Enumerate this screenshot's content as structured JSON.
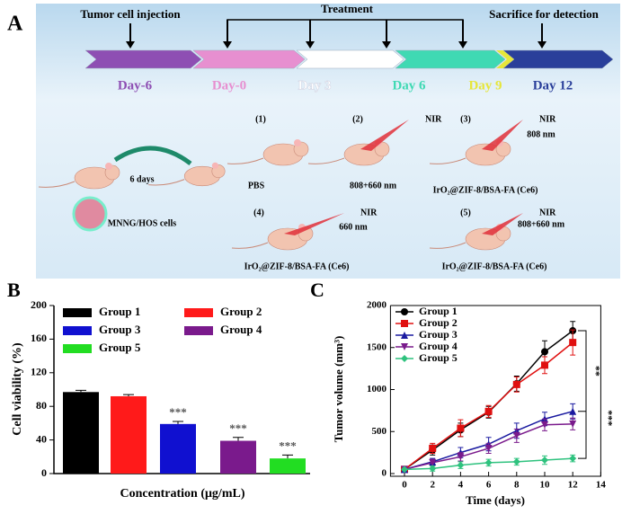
{
  "diagram": {
    "label": "A",
    "captions": {
      "injection": "Tumor cell injection",
      "treatment": "Treatment",
      "sacrifice": "Sacrifice for detection"
    },
    "days": [
      {
        "label": "Day-6",
        "color": "#8e4fb3"
      },
      {
        "label": "Day-0",
        "color": "#e78fd0"
      },
      {
        "label": "Day 3",
        "color": "#ffffff"
      },
      {
        "label": "Day 6",
        "color": "#3fd9b3"
      },
      {
        "label": "Day 9",
        "color": "#e6e63a"
      },
      {
        "label": "Day 12",
        "color": "#2a3f9a"
      }
    ],
    "interval": "6 days",
    "cells": "MNNG/HOS cells",
    "groups": [
      {
        "number": "(1)",
        "agent": "PBS"
      },
      {
        "number": "(2)",
        "nir": "NIR",
        "laser": "808+660 nm"
      },
      {
        "number": "(3)",
        "nir": "NIR",
        "laser": "808 nm",
        "agent": "IrO₂@ZIF-8/BSA-FA (Ce6)"
      },
      {
        "number": "(4)",
        "nir": "NIR",
        "laser": "660 nm",
        "agent": "IrO₂@ZIF-8/BSA-FA (Ce6)"
      },
      {
        "number": "(5)",
        "nir": "NIR",
        "laser": "808+660 nm",
        "agent": "IrO₂@ZIF-8/BSA-FA (Ce6)"
      }
    ]
  },
  "chart_data": [
    {
      "type": "bar",
      "panel": "B",
      "ylabel": "Cell viability (%)",
      "xlabel": "Concentration (μg/mL)",
      "ylim": [
        0,
        200
      ],
      "yticks": [
        0,
        40,
        80,
        120,
        160,
        200
      ],
      "series": [
        {
          "name": "Group 1",
          "color": "#000000",
          "values": [
            97
          ],
          "errors": [
            2
          ]
        },
        {
          "name": "Group 2",
          "color": "#ff1a1a",
          "values": [
            92
          ],
          "errors": [
            2
          ]
        },
        {
          "name": "Group 3",
          "color": "#1010d0",
          "values": [
            59
          ],
          "errors": [
            3
          ],
          "value_labels": [
            "***"
          ]
        },
        {
          "name": "Group 4",
          "color": "#7a1a8c",
          "values": [
            39
          ],
          "errors": [
            4
          ],
          "value_labels": [
            "***"
          ]
        },
        {
          "name": "Group 5",
          "color": "#22dd22",
          "values": [
            18
          ],
          "errors": [
            4
          ],
          "value_labels": [
            "***"
          ]
        }
      ]
    },
    {
      "type": "line",
      "panel": "C",
      "ylabel": "Tumor volume (mm³)",
      "xlabel": "Time (days)",
      "xlim": [
        -1,
        14
      ],
      "xticks": [
        0,
        2,
        4,
        6,
        8,
        10,
        12,
        14
      ],
      "ylim": [
        0,
        2000
      ],
      "yticks": [
        0,
        500,
        1000,
        1500,
        2000
      ],
      "x": [
        0,
        2,
        4,
        6,
        8,
        10,
        12
      ],
      "annotations": [
        "**",
        "***"
      ],
      "series": [
        {
          "name": "Group 1",
          "color": "#000000",
          "marker": "circle",
          "values": [
            50,
            280,
            520,
            730,
            1070,
            1450,
            1700
          ],
          "errors": [
            20,
            60,
            80,
            70,
            90,
            130,
            110
          ]
        },
        {
          "name": "Group 2",
          "color": "#e01010",
          "marker": "square",
          "values": [
            50,
            300,
            540,
            740,
            1060,
            1290,
            1560
          ],
          "errors": [
            20,
            60,
            100,
            70,
            90,
            100,
            150
          ]
        },
        {
          "name": "Group 3",
          "color": "#1a1aa0",
          "marker": "triangle",
          "values": [
            50,
            140,
            250,
            350,
            510,
            650,
            740
          ],
          "errors": [
            15,
            40,
            60,
            80,
            90,
            80,
            90
          ]
        },
        {
          "name": "Group 4",
          "color": "#7a1a8c",
          "marker": "triangle-down",
          "values": [
            50,
            130,
            200,
            300,
            450,
            580,
            590
          ],
          "errors": [
            15,
            40,
            50,
            60,
            80,
            70,
            70
          ]
        },
        {
          "name": "Group 5",
          "color": "#2ec27e",
          "marker": "diamond",
          "values": [
            50,
            60,
            100,
            130,
            140,
            160,
            180
          ],
          "errors": [
            10,
            30,
            40,
            40,
            40,
            50,
            40
          ]
        }
      ]
    }
  ]
}
